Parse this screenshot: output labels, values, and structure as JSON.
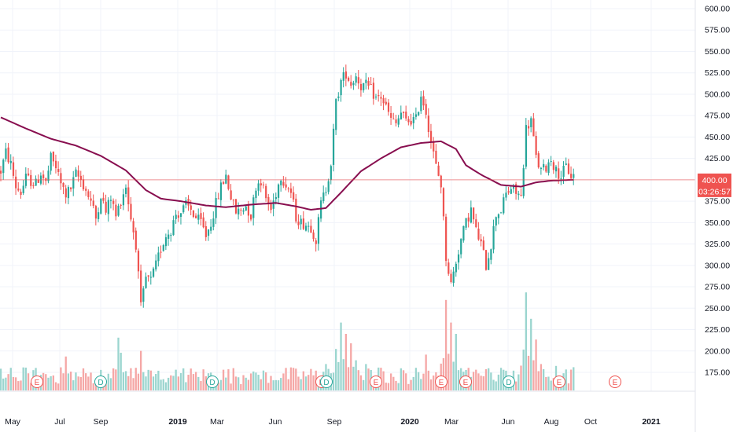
{
  "chart_data": {
    "type": "candlestick",
    "theme": {
      "up_color": "#26a69a",
      "down_color": "#ef5350",
      "up_volume_color": "#9bd5cf",
      "down_volume_color": "#f5a7a6",
      "ma_color": "#880e4f",
      "grid_color": "#f0f3fa",
      "axis_text_color": "#131722",
      "price_line_color": "#ef5350",
      "earnings_marker_color": "#ef5350",
      "dividend_marker_color": "#26a69a"
    },
    "x_axis_labels": [
      "May",
      "Jul",
      "Sep",
      "2019",
      "Mar",
      "Jun",
      "Sep",
      "2020",
      "Mar",
      "Jun",
      "Aug",
      "Oct",
      "2021"
    ],
    "x_axis_bold_labels": [
      "2019",
      "2020",
      "2021"
    ],
    "y_axis_labels": [
      "600.00",
      "575.00",
      "550.00",
      "525.00",
      "500.00",
      "475.00",
      "450.00",
      "425.00",
      "400.00",
      "375.00",
      "350.00",
      "325.00",
      "300.00",
      "275.00",
      "250.00",
      "225.00",
      "200.00",
      "175.00"
    ],
    "ylim": [
      150,
      600
    ],
    "current_price": {
      "value": "400.00",
      "countdown": "03:26:57"
    },
    "price_anchors": [
      [
        0,
        410
      ],
      [
        2,
        432
      ],
      [
        4,
        418
      ],
      [
        6,
        392
      ],
      [
        8,
        385
      ],
      [
        10,
        402
      ],
      [
        14,
        395
      ],
      [
        16,
        408
      ],
      [
        18,
        396
      ],
      [
        20,
        425
      ],
      [
        22,
        415
      ],
      [
        24,
        395
      ],
      [
        26,
        383
      ],
      [
        28,
        390
      ],
      [
        30,
        407
      ],
      [
        32,
        400
      ],
      [
        34,
        388
      ],
      [
        36,
        375
      ],
      [
        38,
        355
      ],
      [
        40,
        383
      ],
      [
        42,
        362
      ],
      [
        44,
        380
      ],
      [
        46,
        357
      ],
      [
        48,
        377
      ],
      [
        50,
        393
      ],
      [
        52,
        355
      ],
      [
        54,
        325
      ],
      [
        56,
        250
      ],
      [
        58,
        285
      ],
      [
        60,
        282
      ],
      [
        62,
        300
      ],
      [
        64,
        320
      ],
      [
        66,
        335
      ],
      [
        68,
        342
      ],
      [
        70,
        360
      ],
      [
        72,
        362
      ],
      [
        74,
        370
      ],
      [
        76,
        365
      ],
      [
        78,
        355
      ],
      [
        80,
        350
      ],
      [
        82,
        335
      ],
      [
        84,
        350
      ],
      [
        86,
        372
      ],
      [
        88,
        392
      ],
      [
        90,
        405
      ],
      [
        92,
        380
      ],
      [
        94,
        362
      ],
      [
        96,
        365
      ],
      [
        98,
        370
      ],
      [
        100,
        358
      ],
      [
        102,
        393
      ],
      [
        104,
        400
      ],
      [
        106,
        378
      ],
      [
        108,
        365
      ],
      [
        110,
        385
      ],
      [
        112,
        405
      ],
      [
        114,
        395
      ],
      [
        116,
        385
      ],
      [
        118,
        357
      ],
      [
        120,
        350
      ],
      [
        122,
        348
      ],
      [
        124,
        345
      ],
      [
        126,
        330
      ],
      [
        128,
        372
      ],
      [
        130,
        390
      ],
      [
        132,
        420
      ],
      [
        134,
        490
      ],
      [
        136,
        515
      ],
      [
        138,
        525
      ],
      [
        140,
        512
      ],
      [
        142,
        522
      ],
      [
        144,
        510
      ],
      [
        146,
        510
      ],
      [
        148,
        505
      ],
      [
        150,
        495
      ],
      [
        152,
        497
      ],
      [
        154,
        485
      ],
      [
        156,
        470
      ],
      [
        158,
        465
      ],
      [
        160,
        478
      ],
      [
        162,
        468
      ],
      [
        164,
        470
      ],
      [
        166,
        470
      ],
      [
        168,
        500
      ],
      [
        170,
        480
      ],
      [
        172,
        445
      ],
      [
        174,
        415
      ],
      [
        176,
        395
      ],
      [
        178,
        310
      ],
      [
        180,
        278
      ],
      [
        182,
        305
      ],
      [
        184,
        330
      ],
      [
        186,
        350
      ],
      [
        188,
        365
      ],
      [
        190,
        340
      ],
      [
        192,
        325
      ],
      [
        194,
        300
      ],
      [
        196,
        325
      ],
      [
        198,
        360
      ],
      [
        200,
        365
      ],
      [
        202,
        383
      ],
      [
        204,
        390
      ],
      [
        206,
        385
      ],
      [
        208,
        380
      ],
      [
        210,
        460
      ],
      [
        212,
        470
      ],
      [
        214,
        425
      ],
      [
        216,
        410
      ],
      [
        218,
        415
      ],
      [
        220,
        425
      ],
      [
        222,
        410
      ],
      [
        224,
        405
      ],
      [
        226,
        415
      ],
      [
        228,
        405
      ]
    ],
    "moving_average": {
      "name": "",
      "anchors": [
        [
          0,
          473
        ],
        [
          10,
          460
        ],
        [
          20,
          448
        ],
        [
          30,
          440
        ],
        [
          40,
          428
        ],
        [
          50,
          411
        ],
        [
          58,
          388
        ],
        [
          64,
          378
        ],
        [
          72,
          375
        ],
        [
          82,
          370
        ],
        [
          90,
          368
        ],
        [
          100,
          371
        ],
        [
          110,
          373
        ],
        [
          118,
          369
        ],
        [
          124,
          365
        ],
        [
          130,
          367
        ],
        [
          136,
          385
        ],
        [
          144,
          410
        ],
        [
          152,
          425
        ],
        [
          160,
          438
        ],
        [
          168,
          443
        ],
        [
          176,
          445
        ],
        [
          182,
          436
        ],
        [
          186,
          417
        ],
        [
          192,
          406
        ],
        [
          200,
          394
        ],
        [
          208,
          392
        ],
        [
          214,
          397
        ],
        [
          220,
          399
        ],
        [
          228,
          400
        ]
      ]
    },
    "volume_spikes": [
      [
        4,
        60
      ],
      [
        26,
        90
      ],
      [
        47,
        140
      ],
      [
        48,
        100
      ],
      [
        56,
        105
      ],
      [
        70,
        55
      ],
      [
        100,
        45
      ],
      [
        130,
        70
      ],
      [
        134,
        110
      ],
      [
        136,
        180
      ],
      [
        138,
        150
      ],
      [
        140,
        125
      ],
      [
        142,
        80
      ],
      [
        146,
        70
      ],
      [
        156,
        45
      ],
      [
        170,
        95
      ],
      [
        178,
        240
      ],
      [
        180,
        180
      ],
      [
        182,
        150
      ],
      [
        190,
        55
      ],
      [
        200,
        60
      ],
      [
        210,
        260
      ],
      [
        212,
        190
      ],
      [
        214,
        135
      ],
      [
        216,
        70
      ],
      [
        222,
        65
      ]
    ],
    "event_markers": [
      {
        "type": "earnings",
        "label": "E"
      },
      {
        "type": "dividend",
        "label": "D"
      },
      {
        "type": "dividend",
        "label": "D"
      },
      {
        "type": "earnings",
        "label": "E"
      },
      {
        "type": "dividend",
        "label": "D"
      },
      {
        "type": "earnings",
        "label": "E"
      },
      {
        "type": "earnings",
        "label": "E"
      },
      {
        "type": "earnings",
        "label": "E"
      },
      {
        "type": "dividend",
        "label": "D"
      },
      {
        "type": "earnings",
        "label": "E"
      },
      {
        "type": "earnings",
        "label": "E"
      },
      {
        "type": "earnings",
        "label": "E"
      }
    ]
  }
}
